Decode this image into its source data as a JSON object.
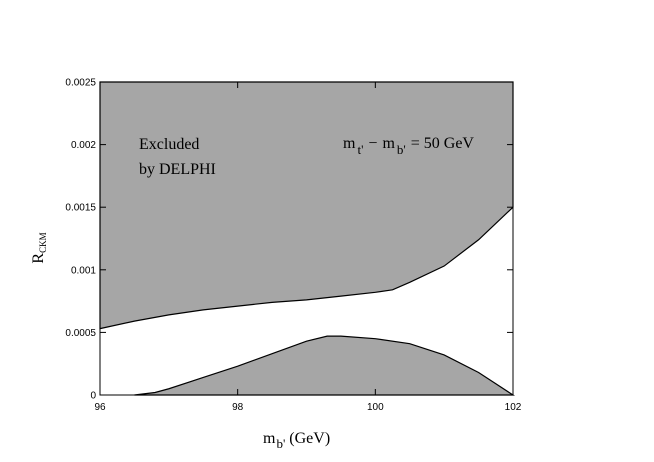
{
  "chart_data": {
    "type": "area",
    "xlabel": {
      "main": "m",
      "sub": "b'",
      "unit": "(GeV)"
    },
    "ylabel": {
      "main": "R",
      "sub": "CKM"
    },
    "xlim": [
      96,
      102
    ],
    "ylim": [
      0,
      0.0025
    ],
    "x_ticks": [
      "96",
      "98",
      "100",
      "102"
    ],
    "y_ticks": [
      "0",
      "0.0005",
      "0.001",
      "0.0015",
      "0.002",
      "0.0025"
    ],
    "annotations": {
      "excluded_line1": "Excluded",
      "excluded_line2": "by DELPHI",
      "mass_diff": {
        "m1": "m",
        "sub1": "t'",
        "minus": "−",
        "m2": "m",
        "sub2": "b'",
        "value": "= 50 GeV"
      }
    },
    "fill_color": "#a6a6a6",
    "series": [
      {
        "role": "upper-excluded-boundary",
        "x": [
          96.0,
          96.5,
          97.0,
          97.5,
          98.0,
          98.5,
          99.0,
          99.5,
          100.0,
          100.25,
          100.5,
          101.0,
          101.5,
          102.0
        ],
        "y": [
          0.00053,
          0.00059,
          0.00064,
          0.00068,
          0.00071,
          0.00074,
          0.00076,
          0.00079,
          0.00082,
          0.00084,
          0.0009,
          0.00103,
          0.00124,
          0.0015
        ]
      },
      {
        "role": "lower-excluded-boundary",
        "x": [
          96.5,
          96.8,
          97.0,
          97.5,
          98.0,
          98.5,
          99.0,
          99.3,
          99.5,
          100.0,
          100.5,
          101.0,
          101.5,
          102.0
        ],
        "y": [
          0.0,
          2e-05,
          5e-05,
          0.00014,
          0.00023,
          0.00033,
          0.00043,
          0.00047,
          0.00047,
          0.00045,
          0.00041,
          0.00032,
          0.00018,
          0.0
        ]
      }
    ]
  }
}
